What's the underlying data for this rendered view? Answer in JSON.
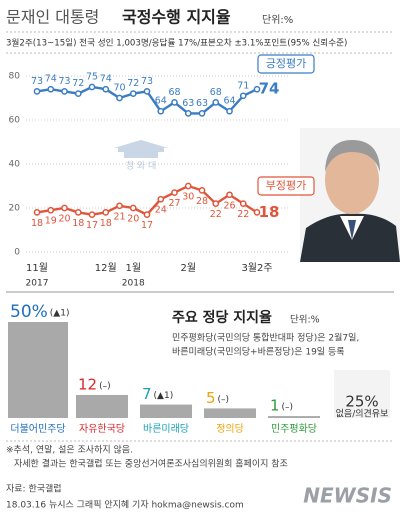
{
  "header": {
    "title_lead": "문재인 대통령",
    "title": "국정수행 지지율",
    "unit": "단위:%",
    "subtitle": "3월2주(13~15일) 전국 성인 1,003명/응답률 17%/표본오차 ±3.1%포인트(95% 신뢰수준)"
  },
  "chart_data": [
    {
      "type": "line",
      "categories": [
        "11월",
        null,
        null,
        null,
        null,
        "12월",
        null,
        "1월",
        null,
        null,
        null,
        "2월",
        null,
        null,
        null,
        null,
        "3월2주"
      ],
      "years": [
        "2017",
        null,
        null,
        null,
        null,
        null,
        null,
        "2018",
        null,
        null,
        null,
        null,
        null,
        null,
        null,
        null,
        null
      ],
      "series": [
        {
          "name": "긍정평가",
          "color": "#3b7dc4",
          "values": [
            73,
            74,
            73,
            72,
            75,
            74,
            70,
            72,
            73,
            64,
            68,
            63,
            63,
            68,
            64,
            71,
            74
          ]
        },
        {
          "name": "부정평가",
          "color": "#e0563b",
          "values": [
            18,
            19,
            20,
            18,
            17,
            18,
            21,
            20,
            17,
            24,
            27,
            30,
            28,
            22,
            26,
            22,
            18
          ]
        }
      ],
      "ylim": [
        0,
        80
      ],
      "yticks": [
        0,
        20,
        40,
        60,
        80
      ],
      "grid": true,
      "watermark": "청 와 대"
    },
    {
      "type": "bar",
      "title": "주요 정당 지지율",
      "unit": "단위:%",
      "note": [
        "민주평화당(국민의당 통합반대파 정당)은 2월7일,",
        "바른미래당(국민의당+바른정당)은 19일 등록"
      ],
      "categories": [
        "더불어민주당",
        "자유한국당",
        "바른미래당",
        "정의당",
        "민주평화당",
        "없음/의견유보"
      ],
      "values": [
        50,
        12,
        7,
        5,
        1,
        25
      ],
      "value_labels": [
        "50%",
        "12",
        "7",
        "5",
        "1",
        "25%"
      ],
      "changes": [
        "(▲1)",
        "(–)",
        "(▲1)",
        "(–)",
        "(–)",
        null
      ],
      "label_colors": [
        "#1f6fc0",
        "#d8262b",
        "#18a3b8",
        "#f0a20a",
        "#2c9b3a",
        "#333333"
      ],
      "color": "#a9a9a9",
      "ylim": [
        0,
        50
      ]
    }
  ],
  "footer": {
    "notes": [
      "※추석, 연말, 설은 조사하지 않음.",
      "자세한 결과는 한국갤럽 또는 중앙선거여론조사심의위원회 홈페이지 참조"
    ],
    "source": "자료: 한국갤럽",
    "credit": "18.03.16 뉴시스 그래픽 안지혜 기자 hokma@newsis.com",
    "logo": "NEWSIS"
  }
}
